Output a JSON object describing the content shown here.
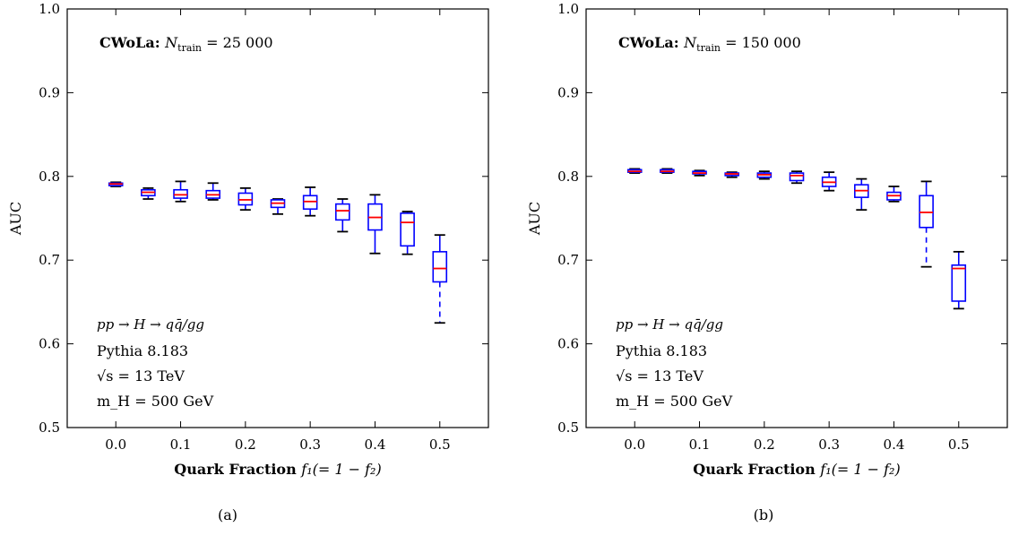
{
  "chart_data": [
    {
      "type": "box",
      "panel_label": "(a)",
      "title_bold": "CWoLa:",
      "title_rest": "N_train = 25 000",
      "title_rest_display": "N",
      "title_sub": "train",
      "title_tail": " = 25 000",
      "xlabel_bold": "Quark Fraction",
      "xlabel_math": "f₁(= 1 − f₂)",
      "ylabel": "AUC",
      "xlim": [
        -0.075,
        0.575
      ],
      "ylim": [
        0.5,
        1.0
      ],
      "xticks": [
        "0.0",
        "0.1",
        "0.2",
        "0.3",
        "0.4",
        "0.5"
      ],
      "yticks": [
        "0.5",
        "0.6",
        "0.7",
        "0.8",
        "0.9",
        "1.0"
      ],
      "annotations": [
        "pp → H → qq̄/gg",
        "Pythia 8.183",
        "√s = 13 TeV",
        "m_H = 500 GeV"
      ],
      "boxes": [
        {
          "x": 0.0,
          "wlo": 0.788,
          "q1": 0.789,
          "med": 0.791,
          "q3": 0.792,
          "whi": 0.793
        },
        {
          "x": 0.05,
          "wlo": 0.773,
          "q1": 0.777,
          "med": 0.781,
          "q3": 0.784,
          "whi": 0.786
        },
        {
          "x": 0.1,
          "wlo": 0.77,
          "q1": 0.774,
          "med": 0.778,
          "q3": 0.784,
          "whi": 0.794
        },
        {
          "x": 0.15,
          "wlo": 0.772,
          "q1": 0.774,
          "med": 0.778,
          "q3": 0.783,
          "whi": 0.792
        },
        {
          "x": 0.2,
          "wlo": 0.76,
          "q1": 0.766,
          "med": 0.772,
          "q3": 0.78,
          "whi": 0.786
        },
        {
          "x": 0.25,
          "wlo": 0.755,
          "q1": 0.763,
          "med": 0.768,
          "q3": 0.772,
          "whi": 0.773
        },
        {
          "x": 0.3,
          "wlo": 0.753,
          "q1": 0.761,
          "med": 0.77,
          "q3": 0.777,
          "whi": 0.787
        },
        {
          "x": 0.35,
          "wlo": 0.734,
          "q1": 0.748,
          "med": 0.759,
          "q3": 0.767,
          "whi": 0.773
        },
        {
          "x": 0.4,
          "wlo": 0.708,
          "q1": 0.736,
          "med": 0.751,
          "q3": 0.767,
          "whi": 0.778
        },
        {
          "x": 0.45,
          "wlo": 0.707,
          "q1": 0.717,
          "med": 0.745,
          "q3": 0.756,
          "whi": 0.758
        },
        {
          "x": 0.5,
          "wlo": 0.625,
          "q1": 0.674,
          "med": 0.69,
          "q3": 0.71,
          "whi": 0.73,
          "dashed_low": true
        }
      ]
    },
    {
      "type": "box",
      "panel_label": "(b)",
      "title_bold": "CWoLa:",
      "title_rest_display": "N",
      "title_sub": "train",
      "title_tail": " = 150 000",
      "xlabel_bold": "Quark Fraction",
      "xlabel_math": "f₁(= 1 − f₂)",
      "ylabel": "AUC",
      "xlim": [
        -0.075,
        0.575
      ],
      "ylim": [
        0.5,
        1.0
      ],
      "xticks": [
        "0.0",
        "0.1",
        "0.2",
        "0.3",
        "0.4",
        "0.5"
      ],
      "yticks": [
        "0.5",
        "0.6",
        "0.7",
        "0.8",
        "0.9",
        "1.0"
      ],
      "annotations": [
        "pp → H → qq̄/gg",
        "Pythia 8.183",
        "√s = 13 TeV",
        "m_H = 500 GeV"
      ],
      "boxes": [
        {
          "x": 0.0,
          "wlo": 0.804,
          "q1": 0.805,
          "med": 0.806,
          "q3": 0.808,
          "whi": 0.809
        },
        {
          "x": 0.05,
          "wlo": 0.804,
          "q1": 0.805,
          "med": 0.806,
          "q3": 0.808,
          "whi": 0.809
        },
        {
          "x": 0.1,
          "wlo": 0.801,
          "q1": 0.803,
          "med": 0.804,
          "q3": 0.806,
          "whi": 0.807
        },
        {
          "x": 0.15,
          "wlo": 0.799,
          "q1": 0.801,
          "med": 0.803,
          "q3": 0.804,
          "whi": 0.805
        },
        {
          "x": 0.2,
          "wlo": 0.797,
          "q1": 0.799,
          "med": 0.802,
          "q3": 0.804,
          "whi": 0.806
        },
        {
          "x": 0.25,
          "wlo": 0.792,
          "q1": 0.795,
          "med": 0.801,
          "q3": 0.804,
          "whi": 0.806
        },
        {
          "x": 0.3,
          "wlo": 0.783,
          "q1": 0.788,
          "med": 0.793,
          "q3": 0.799,
          "whi": 0.805
        },
        {
          "x": 0.35,
          "wlo": 0.76,
          "q1": 0.775,
          "med": 0.783,
          "q3": 0.79,
          "whi": 0.797
        },
        {
          "x": 0.4,
          "wlo": 0.77,
          "q1": 0.772,
          "med": 0.777,
          "q3": 0.781,
          "whi": 0.788
        },
        {
          "x": 0.45,
          "wlo": 0.692,
          "q1": 0.739,
          "med": 0.757,
          "q3": 0.777,
          "whi": 0.794,
          "dashed_low": true
        },
        {
          "x": 0.5,
          "wlo": 0.642,
          "q1": 0.651,
          "med": 0.69,
          "q3": 0.694,
          "whi": 0.71
        }
      ]
    }
  ],
  "colors": {
    "box": "#0000ff",
    "median": "#ff0000",
    "whisker": "#000000",
    "axis": "#000000"
  }
}
